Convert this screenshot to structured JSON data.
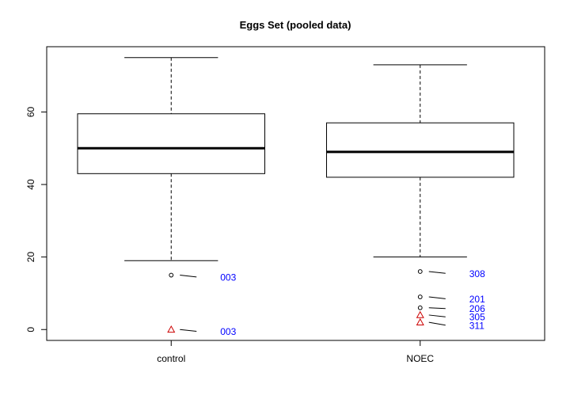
{
  "chart_data": {
    "type": "box",
    "title": "Eggs Set (pooled data)",
    "xlabel": "",
    "ylabel": "",
    "ylim": [
      -3,
      78
    ],
    "y_ticks": [
      0,
      20,
      40,
      60
    ],
    "y_tick_labels": [
      "0",
      "20",
      "40",
      "60"
    ],
    "categories": [
      "control",
      "NOEC"
    ],
    "grid": false,
    "legend": "none",
    "boxes": [
      {
        "category": "control",
        "whisker_low": 19,
        "q1": 43,
        "median": 50,
        "q3": 59.5,
        "whisker_high": 75,
        "points": [
          {
            "y": 15,
            "shape": "circle",
            "color": "#000000"
          },
          {
            "y": 0,
            "shape": "triangle",
            "color": "#cc0000"
          }
        ],
        "annotations": [
          {
            "label": "003",
            "point_y": 15,
            "text_y": 14.5
          },
          {
            "label": "003",
            "point_y": 0,
            "text_y": -0.5
          }
        ]
      },
      {
        "category": "NOEC",
        "whisker_low": 20,
        "q1": 42,
        "median": 49,
        "q3": 57,
        "whisker_high": 73,
        "points": [
          {
            "y": 16,
            "shape": "circle",
            "color": "#000000"
          },
          {
            "y": 9,
            "shape": "circle",
            "color": "#000000"
          },
          {
            "y": 6,
            "shape": "circle",
            "color": "#000000"
          },
          {
            "y": 4,
            "shape": "triangle",
            "color": "#cc0000"
          },
          {
            "y": 2,
            "shape": "triangle",
            "color": "#cc0000"
          }
        ],
        "annotations": [
          {
            "label": "308",
            "point_y": 16,
            "text_y": 15.5
          },
          {
            "label": "201",
            "point_y": 9,
            "text_y": 8.5
          },
          {
            "label": "206",
            "point_y": 6,
            "text_y": 5.8
          },
          {
            "label": "305",
            "point_y": 4,
            "text_y": 3.5
          },
          {
            "label": "311",
            "point_y": 2,
            "text_y": 1.2
          }
        ]
      }
    ],
    "colors": {
      "box": "#000000",
      "median": "#000000",
      "annotation_text": "#0000ff",
      "triangle": "#cc0000",
      "circle": "#000000"
    }
  }
}
